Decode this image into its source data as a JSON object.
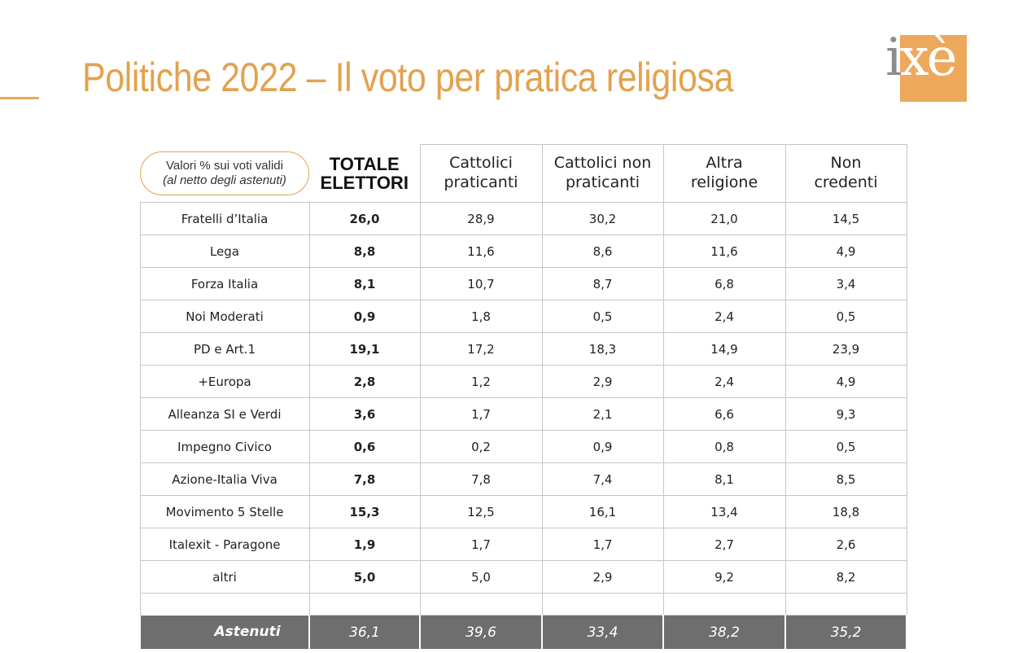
{
  "page": {
    "title": "Politiche 2022 – Il voto per pratica religiosa",
    "logo": {
      "text_i": "i",
      "text_rest": "xè"
    }
  },
  "table": {
    "caption_line1": "Valori % sui voti validi",
    "caption_line2": "(al netto degli astenuti)",
    "total_header": [
      "TOTALE",
      "ELETTORI"
    ],
    "columns": [
      [
        "Cattolici",
        "praticanti"
      ],
      [
        "Cattolici non",
        "praticanti"
      ],
      [
        "Altra",
        "religione"
      ],
      [
        "Non",
        "credenti"
      ]
    ],
    "rows": [
      {
        "party": "Fratelli d’Italia",
        "total": "26,0",
        "values": [
          "28,9",
          "30,2",
          "21,0",
          "14,5"
        ]
      },
      {
        "party": "Lega",
        "total": "8,8",
        "values": [
          "11,6",
          "8,6",
          "11,6",
          "4,9"
        ]
      },
      {
        "party": "Forza Italia",
        "total": "8,1",
        "values": [
          "10,7",
          "8,7",
          "6,8",
          "3,4"
        ]
      },
      {
        "party": "Noi Moderati",
        "total": "0,9",
        "values": [
          "1,8",
          "0,5",
          "2,4",
          "0,5"
        ]
      },
      {
        "party": "PD e Art.1",
        "total": "19,1",
        "values": [
          "17,2",
          "18,3",
          "14,9",
          "23,9"
        ]
      },
      {
        "party": "+Europa",
        "total": "2,8",
        "values": [
          "1,2",
          "2,9",
          "2,4",
          "4,9"
        ]
      },
      {
        "party": "Alleanza SI e Verdi",
        "total": "3,6",
        "values": [
          "1,7",
          "2,1",
          "6,6",
          "9,3"
        ]
      },
      {
        "party": "Impegno Civico",
        "total": "0,6",
        "values": [
          "0,2",
          "0,9",
          "0,8",
          "0,5"
        ]
      },
      {
        "party": "Azione-Italia Viva",
        "total": "7,8",
        "values": [
          "7,8",
          "7,4",
          "8,1",
          "8,5"
        ]
      },
      {
        "party": "Movimento 5 Stelle",
        "total": "15,3",
        "values": [
          "12,5",
          "16,1",
          "13,4",
          "18,8"
        ]
      },
      {
        "party": "Italexit - Paragone",
        "total": "1,9",
        "values": [
          "1,7",
          "1,7",
          "2,7",
          "2,6"
        ]
      },
      {
        "party": "altri",
        "total": "5,0",
        "values": [
          "5,0",
          "2,9",
          "9,2",
          "8,2"
        ]
      }
    ],
    "abstained": {
      "label": "Astenuti",
      "total": "36,1",
      "values": [
        "39,6",
        "33,4",
        "38,2",
        "35,2"
      ]
    }
  },
  "colors": {
    "accent": "#e3a24f",
    "logo_bg": "#eda85c",
    "abstained_bg": "#6e6e6e"
  }
}
